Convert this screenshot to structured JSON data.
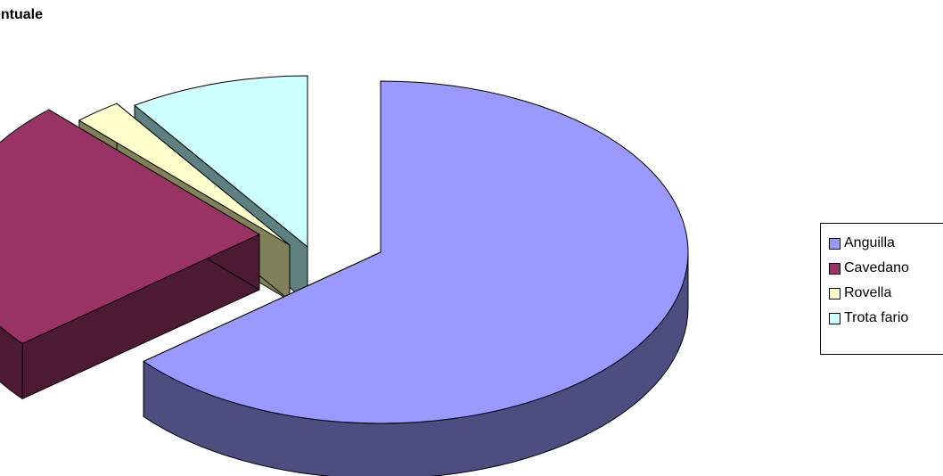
{
  "chart_data": {
    "type": "pie",
    "title": "entuale",
    "three_d": true,
    "exploded": true,
    "categories": [
      "Anguilla",
      "Cavedano",
      "Rovella",
      "Trota fario"
    ],
    "values": [
      64.0,
      24.0,
      2.5,
      9.5
    ],
    "unit": "%",
    "colors": [
      "#9999FF",
      "#993366",
      "#FFFFCC",
      "#CCFFFF"
    ],
    "side_colors": [
      "#4D4D80",
      "#4D1A33",
      "#80805A",
      "#5F8080"
    ],
    "legend": {
      "position": "right",
      "entries": [
        "Anguilla",
        "Cavedano",
        "Rovella",
        "Trota fario"
      ]
    }
  }
}
